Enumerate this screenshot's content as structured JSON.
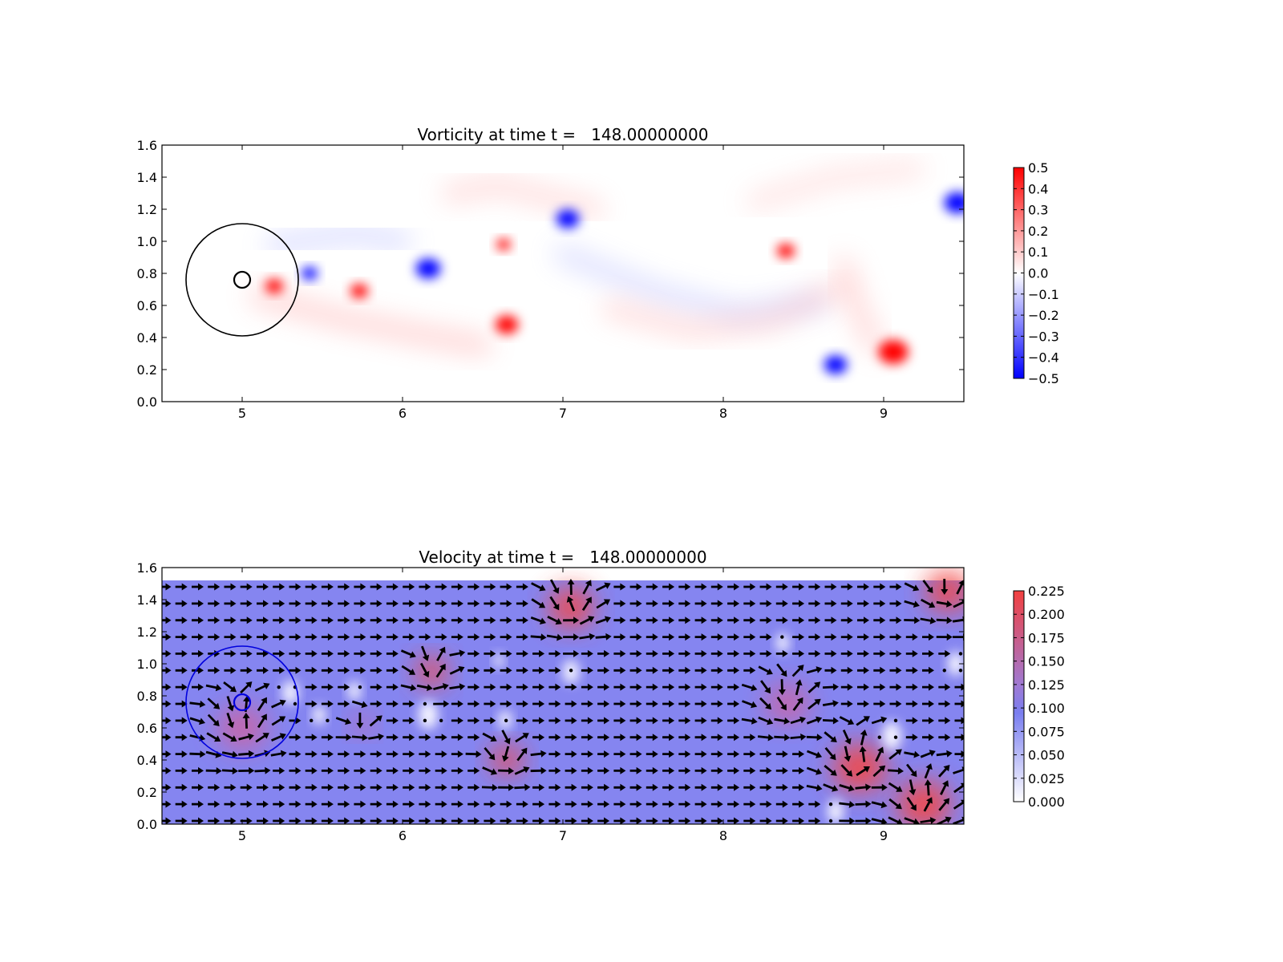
{
  "chart_data": [
    {
      "type": "heatmap",
      "title": "Vorticity at time t =   148.00000000",
      "xlabel": "",
      "ylabel": "",
      "xlim": [
        4.5,
        9.5
      ],
      "ylim": [
        0.0,
        1.6
      ],
      "x_ticks": [
        "5",
        "6",
        "7",
        "8",
        "9"
      ],
      "y_ticks": [
        "0.0",
        "0.2",
        "0.4",
        "0.6",
        "0.8",
        "1.0",
        "1.2",
        "1.4",
        "1.6"
      ],
      "colormap": "bwr",
      "colorbar": {
        "range": [
          -0.5,
          0.5
        ],
        "ticks": [
          "0.5",
          "0.4",
          "0.3",
          "0.2",
          "0.1",
          "0.0",
          "−0.1",
          "−0.2",
          "−0.3",
          "−0.4",
          "−0.5"
        ]
      },
      "colors": {
        "positive": "#ff0000",
        "negative": "#0000ff",
        "zero": "#ffffff"
      },
      "vortices": [
        {
          "x": 5.2,
          "y": 0.72,
          "r": 0.1,
          "strength": 0.5
        },
        {
          "x": 5.42,
          "y": 0.8,
          "r": 0.09,
          "strength": -0.5
        },
        {
          "x": 5.73,
          "y": 0.69,
          "r": 0.1,
          "strength": 0.5
        },
        {
          "x": 6.16,
          "y": 0.83,
          "r": 0.14,
          "strength": -0.5
        },
        {
          "x": 6.63,
          "y": 0.98,
          "r": 0.08,
          "strength": 0.5
        },
        {
          "x": 6.65,
          "y": 0.48,
          "r": 0.13,
          "strength": 0.5
        },
        {
          "x": 7.03,
          "y": 1.14,
          "r": 0.13,
          "strength": -0.5
        },
        {
          "x": 8.39,
          "y": 0.94,
          "r": 0.1,
          "strength": 0.5
        },
        {
          "x": 8.7,
          "y": 0.23,
          "r": 0.13,
          "strength": -0.5
        },
        {
          "x": 9.06,
          "y": 0.31,
          "r": 0.17,
          "strength": 0.5
        },
        {
          "x": 9.46,
          "y": 1.24,
          "r": 0.15,
          "strength": -0.5
        }
      ],
      "bodies": [
        {
          "type": "circle",
          "cx": 5.0,
          "cy": 0.76,
          "r": 0.35,
          "color": "#000000"
        },
        {
          "type": "circle",
          "cx": 5.0,
          "cy": 0.76,
          "r": 0.05,
          "color": "#000000"
        }
      ]
    },
    {
      "type": "heatmap",
      "title": "Velocity at time t =   148.00000000",
      "xlabel": "",
      "ylabel": "",
      "xlim": [
        4.5,
        9.5
      ],
      "ylim": [
        0.0,
        1.6
      ],
      "data_ymax": 1.52,
      "x_ticks": [
        "5",
        "6",
        "7",
        "8",
        "9"
      ],
      "y_ticks": [
        "0.0",
        "0.2",
        "0.4",
        "0.6",
        "0.8",
        "1.0",
        "1.2",
        "1.4",
        "1.6"
      ],
      "colormap": "white-blue-red",
      "colorbar": {
        "range": [
          0.0,
          0.225
        ],
        "ticks": [
          "0.225",
          "0.200",
          "0.175",
          "0.150",
          "0.125",
          "0.100",
          "0.075",
          "0.050",
          "0.025",
          "0.000"
        ]
      },
      "background_speed": 0.1,
      "quiver": {
        "color": "#000000",
        "style": "arrows"
      },
      "fast_regions": [
        {
          "x": 7.05,
          "y": 1.35,
          "r": 0.25,
          "speed": 0.23
        },
        {
          "x": 6.18,
          "y": 0.95,
          "r": 0.18,
          "speed": 0.22
        },
        {
          "x": 6.65,
          "y": 0.4,
          "r": 0.18,
          "speed": 0.23
        },
        {
          "x": 5.0,
          "y": 0.6,
          "r": 0.28,
          "speed": 0.18
        },
        {
          "x": 5.75,
          "y": 0.62,
          "r": 0.12,
          "speed": 0.2
        },
        {
          "x": 8.4,
          "y": 0.75,
          "r": 0.25,
          "speed": 0.17
        },
        {
          "x": 8.85,
          "y": 0.35,
          "r": 0.3,
          "speed": 0.22
        },
        {
          "x": 9.25,
          "y": 0.12,
          "r": 0.3,
          "speed": 0.23
        },
        {
          "x": 9.4,
          "y": 1.45,
          "r": 0.25,
          "speed": 0.23
        }
      ],
      "calm_regions": [
        {
          "x": 5.3,
          "y": 0.82,
          "r": 0.1
        },
        {
          "x": 5.48,
          "y": 0.68,
          "r": 0.08
        },
        {
          "x": 5.7,
          "y": 0.83,
          "r": 0.08
        },
        {
          "x": 6.16,
          "y": 0.68,
          "r": 0.12
        },
        {
          "x": 6.64,
          "y": 0.65,
          "r": 0.08
        },
        {
          "x": 6.6,
          "y": 1.02,
          "r": 0.06
        },
        {
          "x": 7.05,
          "y": 0.95,
          "r": 0.1
        },
        {
          "x": 8.37,
          "y": 1.13,
          "r": 0.08
        },
        {
          "x": 9.05,
          "y": 0.55,
          "r": 0.12
        },
        {
          "x": 9.45,
          "y": 1.0,
          "r": 0.1
        },
        {
          "x": 8.7,
          "y": 0.08,
          "r": 0.1
        }
      ],
      "bodies": [
        {
          "type": "circle",
          "cx": 5.0,
          "cy": 0.76,
          "r": 0.35,
          "color": "#0000dd"
        },
        {
          "type": "circle",
          "cx": 5.0,
          "cy": 0.76,
          "r": 0.05,
          "color": "#0000dd"
        }
      ]
    }
  ]
}
